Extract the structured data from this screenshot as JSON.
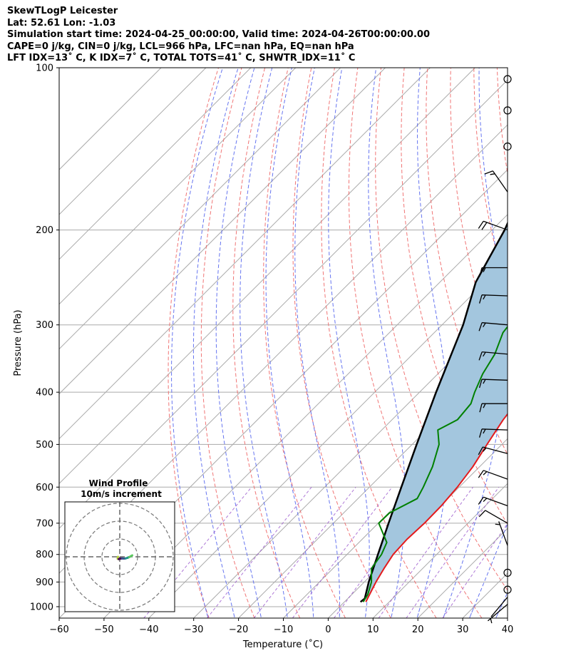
{
  "header": {
    "line1": "SkewTLogP Leicester",
    "line2": "Lat: 52.61   Lon: -1.03",
    "line3": "Simulation start time: 2024-04-25_00:00:00, Valid time: 2024-04-26T00:00:00.00",
    "line4": "CAPE=0 j/kg, CIN=0 j/kg, LCL=966 hPa, LFC=nan hPa, EQ=nan hPa",
    "line5": "LFT IDX=13˚ C, K IDX=7˚ C, TOTAL TOTS=41˚ C, SHWTR_IDX=11˚ C"
  },
  "chart_data": {
    "type": "line",
    "subtype": "skew-t log-p",
    "xlabel": "Temperature (˚C)",
    "ylabel": "Pressure (hPa)",
    "xlim": [
      -60,
      40
    ],
    "ylim": [
      1050,
      100
    ],
    "y_scale": "log",
    "x_ticks": [
      -60,
      -50,
      -40,
      -30,
      -20,
      -10,
      0,
      10,
      20,
      30,
      40
    ],
    "y_ticks": [
      100,
      200,
      300,
      400,
      500,
      600,
      700,
      800,
      900,
      1000
    ],
    "grid": true,
    "colors": {
      "temperature": "#e41a1c",
      "dewpoint": "#008000",
      "parcel": "#000000",
      "shade": "#a3c6de",
      "dry_adiabat": "#ee6666",
      "moist_adiabat": "#5566ee",
      "mixing_ratio": "#9955cc",
      "isotherm": "#aaaaaa"
    },
    "series": [
      {
        "key": "temperature",
        "points": [
          [
            4.8,
            980
          ],
          [
            4.0,
            950
          ],
          [
            2.6,
            900
          ],
          [
            1.4,
            850
          ],
          [
            0.3,
            800
          ],
          [
            0.0,
            750
          ],
          [
            0.3,
            700
          ],
          [
            0.2,
            650
          ],
          [
            -0.4,
            600
          ],
          [
            -1.5,
            550
          ],
          [
            -3.3,
            500
          ],
          [
            -5.2,
            450
          ],
          [
            -6.6,
            400
          ],
          [
            -9.0,
            350
          ],
          [
            -11.4,
            300
          ],
          [
            -12.5,
            270
          ],
          [
            -11.3,
            250
          ],
          [
            -11.9,
            230
          ],
          [
            -11.8,
            210
          ],
          [
            -10.5,
            200
          ],
          [
            -8.3,
            180
          ],
          [
            -6.7,
            170
          ],
          [
            -4.2,
            150
          ],
          [
            -3.2,
            140
          ],
          [
            -3.4,
            130
          ],
          [
            -4.6,
            120
          ],
          [
            -4.3,
            110
          ],
          [
            -4.2,
            100
          ]
        ]
      },
      {
        "key": "dewpoint",
        "points": [
          [
            4.2,
            980
          ],
          [
            3.6,
            950
          ],
          [
            1.6,
            900
          ],
          [
            -1.4,
            850
          ],
          [
            -2.3,
            800
          ],
          [
            -3.8,
            760
          ],
          [
            -9.9,
            700
          ],
          [
            -9.8,
            670
          ],
          [
            -6.8,
            630
          ],
          [
            -8.0,
            600
          ],
          [
            -10.5,
            550
          ],
          [
            -14.0,
            500
          ],
          [
            -17.5,
            470
          ],
          [
            -15.4,
            450
          ],
          [
            -16.0,
            420
          ],
          [
            -17.7,
            400
          ],
          [
            -20.0,
            370
          ],
          [
            -21.7,
            340
          ],
          [
            -24.7,
            310
          ],
          [
            -25.8,
            280
          ],
          [
            -28.0,
            260
          ],
          [
            -30.5,
            240
          ],
          [
            -33.5,
            220
          ],
          [
            -37.7,
            200
          ],
          [
            -44.2,
            185
          ],
          [
            -47.2,
            175
          ],
          [
            -48.5,
            155
          ],
          [
            -47.5,
            130
          ],
          [
            -46.2,
            100
          ]
        ]
      },
      {
        "key": "parcel",
        "points": [
          [
            3.6,
            980
          ],
          [
            3.8,
            966
          ],
          [
            1.0,
            900
          ],
          [
            -3.1,
            800
          ],
          [
            -7.7,
            700
          ],
          [
            -12.9,
            600
          ],
          [
            -19.0,
            500
          ],
          [
            -26.3,
            400
          ],
          [
            -35.3,
            300
          ],
          [
            -42.0,
            250
          ],
          [
            -47.2,
            200
          ],
          [
            -55.5,
            150
          ],
          [
            -60.5,
            120
          ],
          [
            -63.0,
            100
          ]
        ]
      }
    ],
    "wind_barbs": [
      {
        "p": 990,
        "speed_kt": 7,
        "dir": 230
      },
      {
        "p": 960,
        "speed_kt": 3,
        "dir": 220
      },
      {
        "p": 930,
        "speed_kt": 0,
        "dir": 0
      },
      {
        "p": 865,
        "speed_kt": 0,
        "dir": 0
      },
      {
        "p": 770,
        "speed_kt": 7,
        "dir": 340
      },
      {
        "p": 700,
        "speed_kt": 10,
        "dir": 300
      },
      {
        "p": 650,
        "speed_kt": 15,
        "dir": 290
      },
      {
        "p": 580,
        "speed_kt": 15,
        "dir": 290
      },
      {
        "p": 520,
        "speed_kt": 15,
        "dir": 285
      },
      {
        "p": 470,
        "speed_kt": 15,
        "dir": 272
      },
      {
        "p": 420,
        "speed_kt": 15,
        "dir": 270
      },
      {
        "p": 380,
        "speed_kt": 15,
        "dir": 272
      },
      {
        "p": 340,
        "speed_kt": 15,
        "dir": 275
      },
      {
        "p": 300,
        "speed_kt": 15,
        "dir": 275
      },
      {
        "p": 265,
        "speed_kt": 15,
        "dir": 272
      },
      {
        "p": 235,
        "speed_kt": 15,
        "dir": 270
      },
      {
        "p": 200,
        "speed_kt": 20,
        "dir": 290
      },
      {
        "p": 170,
        "speed_kt": 15,
        "dir": 325
      },
      {
        "p": 140,
        "speed_kt": 0,
        "dir": 0
      },
      {
        "p": 120,
        "speed_kt": 0,
        "dir": 0
      },
      {
        "p": 105,
        "speed_kt": 0,
        "dir": 0
      }
    ],
    "hodograph": {
      "title": "Wind Profile",
      "subtitle": "10m/s increment",
      "ring_step_ms": 10,
      "rings": 3,
      "points": [
        [
          -1,
          0
        ],
        [
          -1.2,
          -1.1
        ],
        [
          -0.6,
          -1.3
        ],
        [
          0.4,
          -1.0
        ],
        [
          1.3,
          -0.9
        ],
        [
          2.3,
          -1.0
        ],
        [
          3.3,
          -0.9
        ],
        [
          4.3,
          -0.6
        ],
        [
          5.3,
          -0.2
        ],
        [
          6.0,
          0.2
        ],
        [
          6.5,
          0.5
        ],
        [
          7.0,
          0.8
        ]
      ]
    }
  }
}
